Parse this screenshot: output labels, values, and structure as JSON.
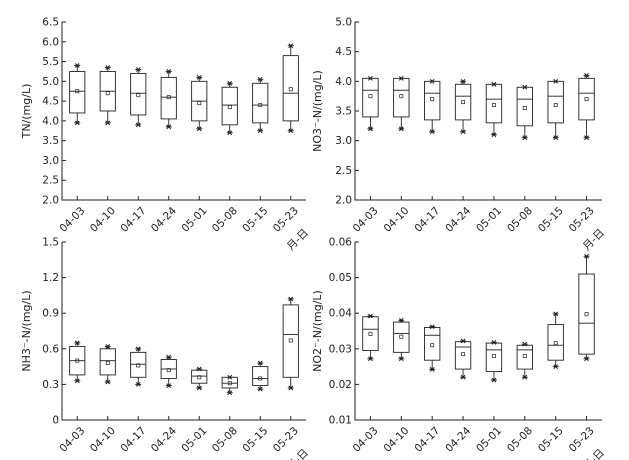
{
  "chart_data": [
    {
      "type": "box",
      "ylabel": "TN/(mg/L)",
      "xlabel": "月-日",
      "ylim": [
        2.0,
        6.5
      ],
      "yticks": [
        "2.0",
        "2.5",
        "3.0",
        "3.5",
        "4.0",
        "4.5",
        "5.0",
        "5.5",
        "6.0",
        "6.5"
      ],
      "categories": [
        "04-03",
        "04-10",
        "04-17",
        "04-24",
        "05-01",
        "05-08",
        "05-15",
        "05-23"
      ],
      "boxes": [
        {
          "min": 3.95,
          "q1": 4.2,
          "median": 4.75,
          "q3": 5.25,
          "max": 5.4,
          "mean": 4.75
        },
        {
          "min": 3.95,
          "q1": 4.25,
          "median": 4.75,
          "q3": 5.25,
          "max": 5.35,
          "mean": 4.7
        },
        {
          "min": 3.9,
          "q1": 4.15,
          "median": 4.7,
          "q3": 5.2,
          "max": 5.3,
          "mean": 4.65
        },
        {
          "min": 3.85,
          "q1": 4.05,
          "median": 4.6,
          "q3": 5.1,
          "max": 5.25,
          "mean": 4.6
        },
        {
          "min": 3.8,
          "q1": 4.0,
          "median": 4.5,
          "q3": 5.0,
          "max": 5.1,
          "mean": 4.45
        },
        {
          "min": 3.7,
          "q1": 3.9,
          "median": 4.4,
          "q3": 4.85,
          "max": 4.95,
          "mean": 4.35
        },
        {
          "min": 3.75,
          "q1": 3.95,
          "median": 4.4,
          "q3": 4.95,
          "max": 5.05,
          "mean": 4.4
        },
        {
          "min": 3.75,
          "q1": 4.0,
          "median": 4.7,
          "q3": 5.65,
          "max": 5.9,
          "mean": 4.8
        }
      ]
    },
    {
      "type": "box",
      "ylabel": "NO3⁻-N/(mg/L)",
      "xlabel": "月-日",
      "ylim": [
        2.0,
        5.0
      ],
      "yticks": [
        "2.0",
        "2.5",
        "3.0",
        "3.5",
        "4.0",
        "4.5",
        "5.0"
      ],
      "categories": [
        "04-03",
        "04-10",
        "04-17",
        "04-24",
        "05-01",
        "05-08",
        "05-15",
        "05-23"
      ],
      "boxes": [
        {
          "min": 3.2,
          "q1": 3.4,
          "median": 3.85,
          "q3": 4.05,
          "max": 4.05,
          "mean": 3.75
        },
        {
          "min": 3.2,
          "q1": 3.4,
          "median": 3.85,
          "q3": 4.05,
          "max": 4.05,
          "mean": 3.75
        },
        {
          "min": 3.15,
          "q1": 3.35,
          "median": 3.8,
          "q3": 4.0,
          "max": 4.0,
          "mean": 3.7
        },
        {
          "min": 3.15,
          "q1": 3.35,
          "median": 3.75,
          "q3": 3.95,
          "max": 4.0,
          "mean": 3.65
        },
        {
          "min": 3.1,
          "q1": 3.3,
          "median": 3.7,
          "q3": 3.95,
          "max": 3.95,
          "mean": 3.6
        },
        {
          "min": 3.05,
          "q1": 3.25,
          "median": 3.7,
          "q3": 3.9,
          "max": 3.9,
          "mean": 3.55
        },
        {
          "min": 3.05,
          "q1": 3.3,
          "median": 3.75,
          "q3": 4.0,
          "max": 4.0,
          "mean": 3.6
        },
        {
          "min": 3.05,
          "q1": 3.35,
          "median": 3.8,
          "q3": 4.05,
          "max": 4.1,
          "mean": 3.7
        }
      ]
    },
    {
      "type": "box",
      "ylabel": "NH3⁻-N/(mg/L)",
      "xlabel": "月-日",
      "ylim": [
        0,
        1.5
      ],
      "yticks": [
        "0",
        "0.3",
        "0.6",
        "0.9",
        "1.2",
        "1.5"
      ],
      "categories": [
        "04-03",
        "04-10",
        "04-17",
        "04-24",
        "05-01",
        "05-08",
        "05-15",
        "05-23"
      ],
      "boxes": [
        {
          "min": 0.33,
          "q1": 0.38,
          "median": 0.5,
          "q3": 0.62,
          "max": 0.65,
          "mean": 0.5
        },
        {
          "min": 0.32,
          "q1": 0.38,
          "median": 0.5,
          "q3": 0.6,
          "max": 0.62,
          "mean": 0.48
        },
        {
          "min": 0.3,
          "q1": 0.36,
          "median": 0.47,
          "q3": 0.57,
          "max": 0.6,
          "mean": 0.46
        },
        {
          "min": 0.29,
          "q1": 0.35,
          "median": 0.43,
          "q3": 0.51,
          "max": 0.53,
          "mean": 0.42
        },
        {
          "min": 0.27,
          "q1": 0.31,
          "median": 0.37,
          "q3": 0.42,
          "max": 0.43,
          "mean": 0.36
        },
        {
          "min": 0.23,
          "q1": 0.27,
          "median": 0.31,
          "q3": 0.36,
          "max": 0.36,
          "mean": 0.31
        },
        {
          "min": 0.26,
          "q1": 0.29,
          "median": 0.35,
          "q3": 0.45,
          "max": 0.48,
          "mean": 0.35
        },
        {
          "min": 0.27,
          "q1": 0.36,
          "median": 0.72,
          "q3": 0.97,
          "max": 1.02,
          "mean": 0.67
        }
      ]
    },
    {
      "type": "box",
      "ylabel": "NO2⁻-N/(mg/L)",
      "xlabel": "月-日",
      "ylim": [
        0.01,
        0.06
      ],
      "yticks": [
        "0.01",
        "0.02",
        "0.03",
        "0.04",
        "0.05",
        "0.06"
      ],
      "categories": [
        "04-03",
        "04-10",
        "04-17",
        "04-24",
        "05-01",
        "05-08",
        "05-15",
        "05-23"
      ],
      "boxes": [
        {
          "min": 0.0272,
          "q1": 0.0295,
          "median": 0.0355,
          "q3": 0.039,
          "max": 0.0392,
          "mean": 0.0342
        },
        {
          "min": 0.0272,
          "q1": 0.029,
          "median": 0.0343,
          "q3": 0.0375,
          "max": 0.038,
          "mean": 0.0334
        },
        {
          "min": 0.0242,
          "q1": 0.0268,
          "median": 0.0338,
          "q3": 0.036,
          "max": 0.0362,
          "mean": 0.031
        },
        {
          "min": 0.022,
          "q1": 0.0243,
          "median": 0.0305,
          "q3": 0.032,
          "max": 0.0322,
          "mean": 0.0285
        },
        {
          "min": 0.0212,
          "q1": 0.0236,
          "median": 0.0297,
          "q3": 0.0316,
          "max": 0.0318,
          "mean": 0.028
        },
        {
          "min": 0.022,
          "q1": 0.0243,
          "median": 0.0297,
          "q3": 0.031,
          "max": 0.0313,
          "mean": 0.028
        },
        {
          "min": 0.025,
          "q1": 0.0268,
          "median": 0.031,
          "q3": 0.0368,
          "max": 0.0398,
          "mean": 0.0316
        },
        {
          "min": 0.0272,
          "q1": 0.0285,
          "median": 0.0372,
          "q3": 0.051,
          "max": 0.056,
          "mean": 0.0397
        }
      ]
    }
  ]
}
